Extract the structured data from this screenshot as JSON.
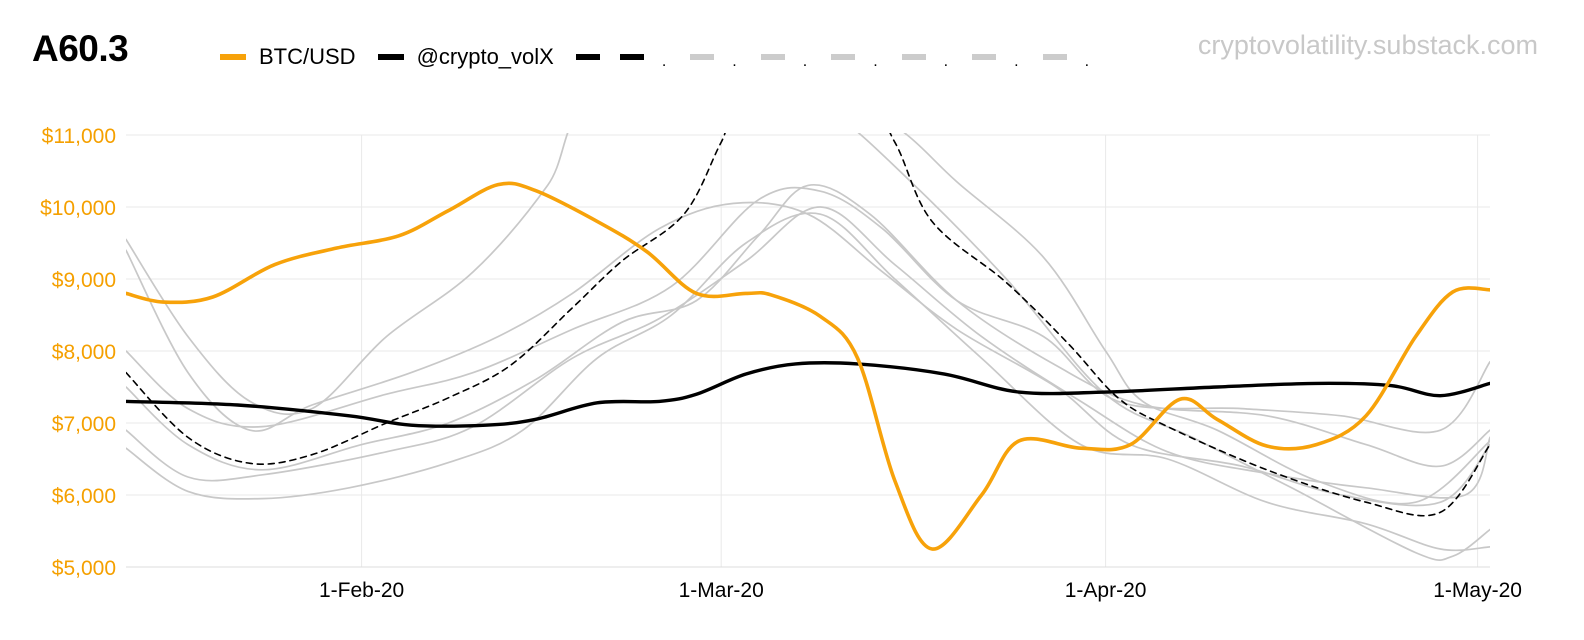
{
  "header": {
    "title": "A60.3",
    "watermark": "cryptovolatility.substack.com"
  },
  "legend": {
    "btc_label": "BTC/USD",
    "vol_label": "@crypto_volX",
    "extra_dot": "."
  },
  "colors": {
    "btc": "#f7a20a",
    "vol": "#000000",
    "gray": "#c8c8c8",
    "grid": "#e9e9e9",
    "axis_text": "#f5a000"
  },
  "chart_data": {
    "type": "line",
    "title": "A60.3",
    "xlabel": "",
    "ylabel": "",
    "ylim": [
      5000,
      11000
    ],
    "yticks": [
      5000,
      6000,
      7000,
      8000,
      9000,
      10000,
      11000
    ],
    "ytick_labels": [
      "$5,000",
      "$6,000",
      "$7,000",
      "$8,000",
      "$9,000",
      "$10,000",
      "$11,000"
    ],
    "xlim": [
      "2020-01-13",
      "2020-05-02"
    ],
    "xticks": [
      "2020-02-01",
      "2020-03-01",
      "2020-04-01",
      "2020-05-01"
    ],
    "xtick_labels": [
      "1-Feb-20",
      "1-Mar-20",
      "1-Apr-20",
      "1-May-20"
    ],
    "grid": true,
    "legend_position": "top",
    "series": [
      {
        "name": "BTC/USD",
        "style": "orange-solid",
        "points": [
          [
            "2020-01-13",
            8800
          ],
          [
            "2020-01-16",
            8680
          ],
          [
            "2020-01-20",
            8750
          ],
          [
            "2020-01-25",
            9200
          ],
          [
            "2020-01-30",
            9430
          ],
          [
            "2020-02-04",
            9600
          ],
          [
            "2020-02-08",
            9950
          ],
          [
            "2020-02-12",
            10310
          ],
          [
            "2020-02-15",
            10230
          ],
          [
            "2020-02-20",
            9800
          ],
          [
            "2020-02-24",
            9380
          ],
          [
            "2020-02-28",
            8800
          ],
          [
            "2020-03-03",
            8800
          ],
          [
            "2020-03-05",
            8780
          ],
          [
            "2020-03-09",
            8480
          ],
          [
            "2020-03-12",
            7900
          ],
          [
            "2020-03-15",
            6200
          ],
          [
            "2020-03-18",
            5250
          ],
          [
            "2020-03-22",
            6000
          ],
          [
            "2020-03-25",
            6750
          ],
          [
            "2020-03-30",
            6650
          ],
          [
            "2020-04-03",
            6700
          ],
          [
            "2020-04-07",
            7330
          ],
          [
            "2020-04-10",
            7050
          ],
          [
            "2020-04-14",
            6680
          ],
          [
            "2020-04-18",
            6700
          ],
          [
            "2020-04-22",
            7100
          ],
          [
            "2020-04-26",
            8200
          ],
          [
            "2020-04-29",
            8820
          ],
          [
            "2020-05-02",
            8850
          ]
        ]
      },
      {
        "name": "@crypto_volX",
        "style": "black-solid",
        "points": [
          [
            "2020-01-13",
            7300
          ],
          [
            "2020-01-22",
            7250
          ],
          [
            "2020-01-31",
            7100
          ],
          [
            "2020-02-05",
            6970
          ],
          [
            "2020-02-11",
            6970
          ],
          [
            "2020-02-15",
            7050
          ],
          [
            "2020-02-20",
            7280
          ],
          [
            "2020-02-25",
            7300
          ],
          [
            "2020-02-28",
            7400
          ],
          [
            "2020-03-03",
            7680
          ],
          [
            "2020-03-07",
            7820
          ],
          [
            "2020-03-12",
            7820
          ],
          [
            "2020-03-19",
            7680
          ],
          [
            "2020-03-25",
            7430
          ],
          [
            "2020-04-01",
            7430
          ],
          [
            "2020-04-10",
            7500
          ],
          [
            "2020-04-18",
            7550
          ],
          [
            "2020-04-24",
            7520
          ],
          [
            "2020-04-28",
            7380
          ],
          [
            "2020-05-02",
            7550
          ]
        ]
      },
      {
        "style": "black-dashed",
        "points": [
          [
            "2020-01-13",
            7700
          ],
          [
            "2020-01-18",
            6800
          ],
          [
            "2020-01-23",
            6440
          ],
          [
            "2020-01-28",
            6560
          ],
          [
            "2020-02-03",
            7000
          ],
          [
            "2020-02-08",
            7350
          ],
          [
            "2020-02-13",
            7800
          ],
          [
            "2020-02-18",
            8600
          ],
          [
            "2020-02-22",
            9250
          ],
          [
            "2020-02-27",
            9900
          ],
          [
            "2020-03-01",
            10900
          ],
          [
            "2020-03-03",
            11500
          ],
          [
            "2020-03-12",
            11600
          ],
          [
            "2020-03-15",
            10900
          ],
          [
            "2020-03-18",
            9800
          ],
          [
            "2020-03-24",
            8950
          ],
          [
            "2020-03-29",
            8100
          ],
          [
            "2020-04-02",
            7350
          ],
          [
            "2020-04-06",
            6950
          ],
          [
            "2020-04-14",
            6350
          ],
          [
            "2020-04-22",
            5900
          ],
          [
            "2020-04-28",
            5760
          ],
          [
            "2020-05-02",
            6700
          ]
        ]
      },
      {
        "style": "gray-solid",
        "points": [
          [
            "2020-01-13",
            9550
          ],
          [
            "2020-01-18",
            8200
          ],
          [
            "2020-01-23",
            7300
          ],
          [
            "2020-01-28",
            7200
          ],
          [
            "2020-02-03",
            8200
          ],
          [
            "2020-02-10",
            9100
          ],
          [
            "2020-02-16",
            10300
          ],
          [
            "2020-02-20",
            11500
          ],
          [
            "2020-03-05",
            11600
          ],
          [
            "2020-03-10",
            11300
          ],
          [
            "2020-03-16",
            10400
          ],
          [
            "2020-03-24",
            9000
          ],
          [
            "2020-04-01",
            7400
          ],
          [
            "2020-04-08",
            6800
          ],
          [
            "2020-04-16",
            6100
          ],
          [
            "2020-04-26",
            5200
          ],
          [
            "2020-04-29",
            5150
          ],
          [
            "2020-05-02",
            5520
          ]
        ]
      },
      {
        "style": "gray-solid",
        "points": [
          [
            "2020-01-13",
            9400
          ],
          [
            "2020-01-18",
            7700
          ],
          [
            "2020-01-23",
            6900
          ],
          [
            "2020-01-28",
            7250
          ],
          [
            "2020-02-05",
            7700
          ],
          [
            "2020-02-12",
            8200
          ],
          [
            "2020-02-18",
            8800
          ],
          [
            "2020-02-25",
            9700
          ],
          [
            "2020-03-02",
            10050
          ],
          [
            "2020-03-08",
            9900
          ],
          [
            "2020-03-14",
            9100
          ],
          [
            "2020-03-20",
            8300
          ],
          [
            "2020-03-28",
            7500
          ],
          [
            "2020-04-03",
            6700
          ],
          [
            "2020-04-12",
            6400
          ],
          [
            "2020-04-20",
            6000
          ],
          [
            "2020-04-28",
            5900
          ],
          [
            "2020-05-02",
            6700
          ]
        ]
      },
      {
        "style": "gray-solid",
        "points": [
          [
            "2020-01-13",
            8000
          ],
          [
            "2020-01-18",
            7200
          ],
          [
            "2020-01-24",
            6950
          ],
          [
            "2020-02-03",
            7400
          ],
          [
            "2020-02-10",
            7700
          ],
          [
            "2020-02-18",
            8300
          ],
          [
            "2020-02-26",
            8900
          ],
          [
            "2020-03-04",
            10100
          ],
          [
            "2020-03-09",
            10220
          ],
          [
            "2020-03-14",
            9700
          ],
          [
            "2020-03-20",
            8700
          ],
          [
            "2020-03-27",
            8200
          ],
          [
            "2020-04-02",
            7300
          ],
          [
            "2020-04-12",
            7200
          ],
          [
            "2020-04-20",
            7100
          ],
          [
            "2020-04-28",
            6900
          ],
          [
            "2020-05-02",
            7850
          ]
        ]
      },
      {
        "style": "gray-solid",
        "points": [
          [
            "2020-01-13",
            7500
          ],
          [
            "2020-01-18",
            6700
          ],
          [
            "2020-01-24",
            6350
          ],
          [
            "2020-02-01",
            6700
          ],
          [
            "2020-02-08",
            7000
          ],
          [
            "2020-02-15",
            7600
          ],
          [
            "2020-02-22",
            8400
          ],
          [
            "2020-02-28",
            8700
          ],
          [
            "2020-03-04",
            9600
          ],
          [
            "2020-03-08",
            10300
          ],
          [
            "2020-03-13",
            9900
          ],
          [
            "2020-03-20",
            8700
          ],
          [
            "2020-03-28",
            7800
          ],
          [
            "2020-04-04",
            7250
          ],
          [
            "2020-04-14",
            7100
          ],
          [
            "2020-04-22",
            6700
          ],
          [
            "2020-04-28",
            6400
          ],
          [
            "2020-05-02",
            6900
          ]
        ]
      },
      {
        "style": "gray-solid",
        "points": [
          [
            "2020-01-13",
            6900
          ],
          [
            "2020-01-18",
            6250
          ],
          [
            "2020-01-24",
            6280
          ],
          [
            "2020-02-03",
            6600
          ],
          [
            "2020-02-10",
            6950
          ],
          [
            "2020-02-18",
            7900
          ],
          [
            "2020-02-25",
            8450
          ],
          [
            "2020-03-03",
            9250
          ],
          [
            "2020-03-09",
            10000
          ],
          [
            "2020-03-15",
            9200
          ],
          [
            "2020-03-22",
            8200
          ],
          [
            "2020-03-30",
            7300
          ],
          [
            "2020-04-06",
            6600
          ],
          [
            "2020-04-14",
            6300
          ],
          [
            "2020-04-22",
            6100
          ],
          [
            "2020-04-30",
            6000
          ],
          [
            "2020-05-02",
            6800
          ]
        ]
      },
      {
        "style": "gray-solid",
        "points": [
          [
            "2020-01-13",
            6650
          ],
          [
            "2020-01-18",
            6050
          ],
          [
            "2020-01-24",
            5950
          ],
          [
            "2020-01-31",
            6100
          ],
          [
            "2020-02-08",
            6450
          ],
          [
            "2020-02-14",
            6900
          ],
          [
            "2020-02-20",
            7900
          ],
          [
            "2020-02-26",
            8500
          ],
          [
            "2020-03-03",
            9500
          ],
          [
            "2020-03-09",
            9900
          ],
          [
            "2020-03-15",
            9000
          ],
          [
            "2020-03-22",
            7900
          ],
          [
            "2020-03-30",
            6700
          ],
          [
            "2020-04-06",
            6500
          ],
          [
            "2020-04-14",
            5900
          ],
          [
            "2020-04-22",
            5600
          ],
          [
            "2020-04-28",
            5250
          ],
          [
            "2020-05-02",
            5280
          ]
        ]
      },
      {
        "style": "gray-solid",
        "points": [
          [
            "2020-03-11",
            11600
          ],
          [
            "2020-03-16",
            11000
          ],
          [
            "2020-03-20",
            10350
          ],
          [
            "2020-03-27",
            9300
          ],
          [
            "2020-04-01",
            8000
          ],
          [
            "2020-04-04",
            7300
          ],
          [
            "2020-04-10",
            6900
          ],
          [
            "2020-04-18",
            6200
          ],
          [
            "2020-04-26",
            5900
          ],
          [
            "2020-05-02",
            6750
          ]
        ]
      }
    ]
  }
}
